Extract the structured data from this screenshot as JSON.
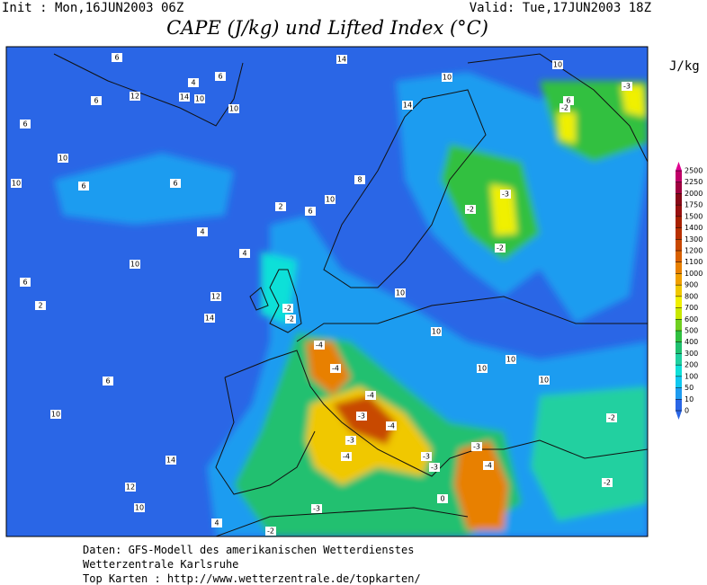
{
  "header": {
    "init": "Init : Mon,16JUN2003 06Z",
    "valid": "Valid: Tue,17JUN2003 18Z",
    "title": "CAPE (J/kg) und Lifted Index (°C)"
  },
  "colorbar": {
    "unit": "J/kg",
    "levels": [
      0,
      10,
      50,
      100,
      200,
      300,
      400,
      500,
      600,
      700,
      800,
      900,
      1000,
      1100,
      1200,
      1300,
      1400,
      1500,
      1750,
      2000,
      2250,
      2500
    ],
    "colors": [
      "#2a66e6",
      "#1e9cf0",
      "#10c8f0",
      "#10e0d8",
      "#20d0a0",
      "#20c070",
      "#30c040",
      "#70d020",
      "#c8e800",
      "#f0f000",
      "#f0c800",
      "#f0a000",
      "#e88000",
      "#d86000",
      "#c84800",
      "#b83000",
      "#a82000",
      "#981010",
      "#880818",
      "#a00040",
      "#c00068",
      "#e00090"
    ]
  },
  "map": {
    "labels": [
      6,
      14,
      10,
      4,
      12,
      14,
      10,
      10,
      6,
      6,
      6,
      10,
      10,
      6,
      6,
      4,
      10,
      12,
      14,
      6,
      2,
      6,
      10,
      14,
      12,
      10,
      4,
      4,
      2,
      6,
      10,
      8,
      14,
      10,
      -3,
      -2,
      -2,
      6,
      -2,
      -3,
      -2,
      -2,
      -4,
      -4,
      -4,
      -3,
      -4,
      -3,
      -4,
      -3,
      -3,
      -3,
      -4,
      10,
      10,
      10,
      10,
      10,
      -2,
      -2,
      -3,
      -2,
      0
    ]
  },
  "footer": {
    "lines": [
      "Daten: GFS-Modell des amerikanischen Wetterdienstes",
      "Wetterzentrale Karlsruhe",
      "Top Karten :  http://www.wetterzentrale.de/topkarten/"
    ]
  }
}
